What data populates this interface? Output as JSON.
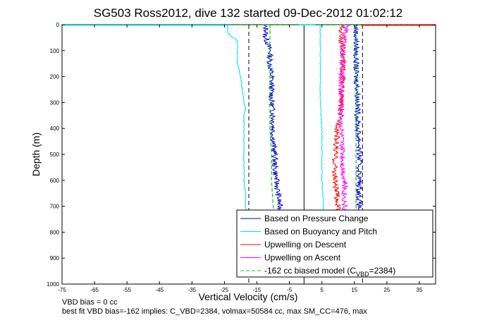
{
  "chart_data": {
    "type": "line",
    "title": "SG503 Ross2012, dive 132 started 09-Dec-2012 01:02:12",
    "xlabel": "Vertical Velocity (cm/s)",
    "ylabel": "Depth (m)",
    "xlim": [
      -75,
      40
    ],
    "ylim": [
      0,
      1000
    ],
    "y_reversed": true,
    "x_ticks": [
      "-75",
      "-65",
      "-55",
      "-45",
      "-35",
      "-25",
      "-15",
      "-5",
      "5",
      "15",
      "25",
      "35"
    ],
    "x_tick_values": [
      -75,
      -65,
      -55,
      -45,
      -35,
      -25,
      -15,
      -5,
      5,
      15,
      25,
      35
    ],
    "y_ticks": [
      "0",
      "100",
      "200",
      "300",
      "400",
      "500",
      "600",
      "700",
      "800",
      "900",
      "1000"
    ],
    "y_tick_values": [
      0,
      100,
      200,
      300,
      400,
      500,
      600,
      700,
      800,
      900,
      1000
    ],
    "grid": false,
    "legend_position": "bottom-right",
    "legend": [
      {
        "label": "Based on Pressure Change",
        "color": "#0000cc",
        "style": "solid"
      },
      {
        "label": "Based on Buoyancy and Pitch",
        "color": "#00e5e5",
        "style": "solid"
      },
      {
        "label": "Upwelling on Descent",
        "color": "#ff0000",
        "style": "solid"
      },
      {
        "label": "Upwelling on Ascent",
        "color": "#ff00ff",
        "style": "solid"
      },
      {
        "label": "-162 cc biased model (C",
        "sub": "VBD",
        "suffix": "=2384)",
        "color": "#00cc00",
        "style": "dashed"
      }
    ],
    "reference_lines": [
      {
        "x": -17.5,
        "style": "dashed",
        "color": "#000000"
      },
      {
        "x": -0.5,
        "style": "solid",
        "color": "#000000"
      },
      {
        "x": 17.5,
        "style": "dashed",
        "color": "#000000"
      }
    ],
    "series": [
      {
        "name": "Based on Pressure Change",
        "color": "#0000cc",
        "branch": "descent",
        "depth": [
          0,
          10,
          20,
          40,
          60,
          80,
          100,
          150,
          200,
          250,
          300,
          350,
          400,
          450,
          500,
          550,
          600,
          650,
          700,
          740
        ],
        "velocity": [
          -13,
          -12.5,
          -12,
          -12.5,
          -12,
          -11.5,
          -11,
          -11,
          -10.5,
          -10.5,
          -10.5,
          -10,
          -10,
          -10,
          -9.5,
          -9.5,
          -9,
          -8.5,
          -8,
          -7.5
        ]
      },
      {
        "name": "Based on Buoyancy and Pitch",
        "color": "#00e5e5",
        "branch": "descent",
        "depth": [
          0,
          30,
          45,
          60,
          80,
          100,
          150,
          200,
          250,
          300,
          320,
          350,
          400,
          450,
          500,
          550,
          600,
          650,
          700,
          740
        ],
        "velocity": [
          -24,
          -24,
          -23,
          -21,
          -21,
          -21,
          -21,
          -20,
          -19.5,
          -19,
          -18.5,
          -19,
          -19,
          -19,
          -19,
          -19,
          -19,
          -18.5,
          -18.5,
          -18
        ]
      },
      {
        "name": "Based on Pressure Change",
        "color": "#0000cc",
        "branch": "ascent",
        "depth": [
          0,
          50,
          100,
          150,
          200,
          250,
          300,
          350,
          400,
          450,
          500,
          550,
          600,
          650,
          700,
          740
        ],
        "velocity": [
          15.5,
          15.5,
          15.5,
          15.5,
          15.5,
          16,
          16,
          16,
          16,
          16.5,
          16.5,
          16.5,
          16.5,
          16.5,
          16.5,
          16.5
        ]
      },
      {
        "name": "Based on Buoyancy and Pitch",
        "color": "#00e5e5",
        "branch": "ascent",
        "depth": [
          0,
          100,
          200,
          300,
          400,
          500,
          600,
          700,
          740
        ],
        "velocity": [
          4.5,
          4.5,
          4.5,
          4.5,
          5,
          5,
          5,
          5.5,
          5.5
        ]
      },
      {
        "name": "Upwelling on Descent",
        "color": "#ff0000",
        "depth": [
          0,
          50,
          100,
          150,
          200,
          250,
          300,
          350,
          400,
          450,
          500,
          550,
          600,
          650,
          700,
          740
        ],
        "velocity": [
          11,
          11,
          11.5,
          11.5,
          11.5,
          11,
          11,
          10.5,
          10,
          9.5,
          9,
          9,
          9,
          9.5,
          10,
          10
        ]
      },
      {
        "name": "Upwelling on Ascent",
        "color": "#ff00ff",
        "depth": [
          0,
          50,
          100,
          150,
          200,
          250,
          300,
          350,
          400,
          450,
          500,
          550,
          600,
          650,
          700,
          740
        ],
        "velocity": [
          12.5,
          12,
          11.5,
          11,
          11,
          11,
          11,
          11,
          11,
          11,
          11.5,
          11.5,
          12,
          12,
          12,
          12
        ]
      },
      {
        "name": "-162 cc biased model (C_VBD=2384)",
        "color": "#00cc00",
        "dashed": true,
        "branch": "descent",
        "depth": [
          0,
          100,
          200,
          300,
          400,
          500,
          600,
          700,
          740
        ],
        "velocity": [
          -11,
          -11,
          -11,
          -11,
          -11,
          -10.5,
          -10.5,
          -10,
          -10
        ]
      },
      {
        "name": "-162 cc biased model (C_VBD=2384)",
        "color": "#00cc00",
        "dashed": true,
        "branch": "ascent",
        "depth": [
          0,
          100,
          200,
          300,
          400,
          500,
          600,
          700,
          740
        ],
        "velocity": [
          15.5,
          15.5,
          15.5,
          15.5,
          15.5,
          15.5,
          15.5,
          15.5,
          15.5
        ]
      }
    ]
  },
  "footnotes": {
    "line1": "VBD bias = 0 cc",
    "line2": "best fit VBD bias=-162 implies: C_VBD=2384, volmax=50584 cc, max SM_CC=476, max"
  }
}
